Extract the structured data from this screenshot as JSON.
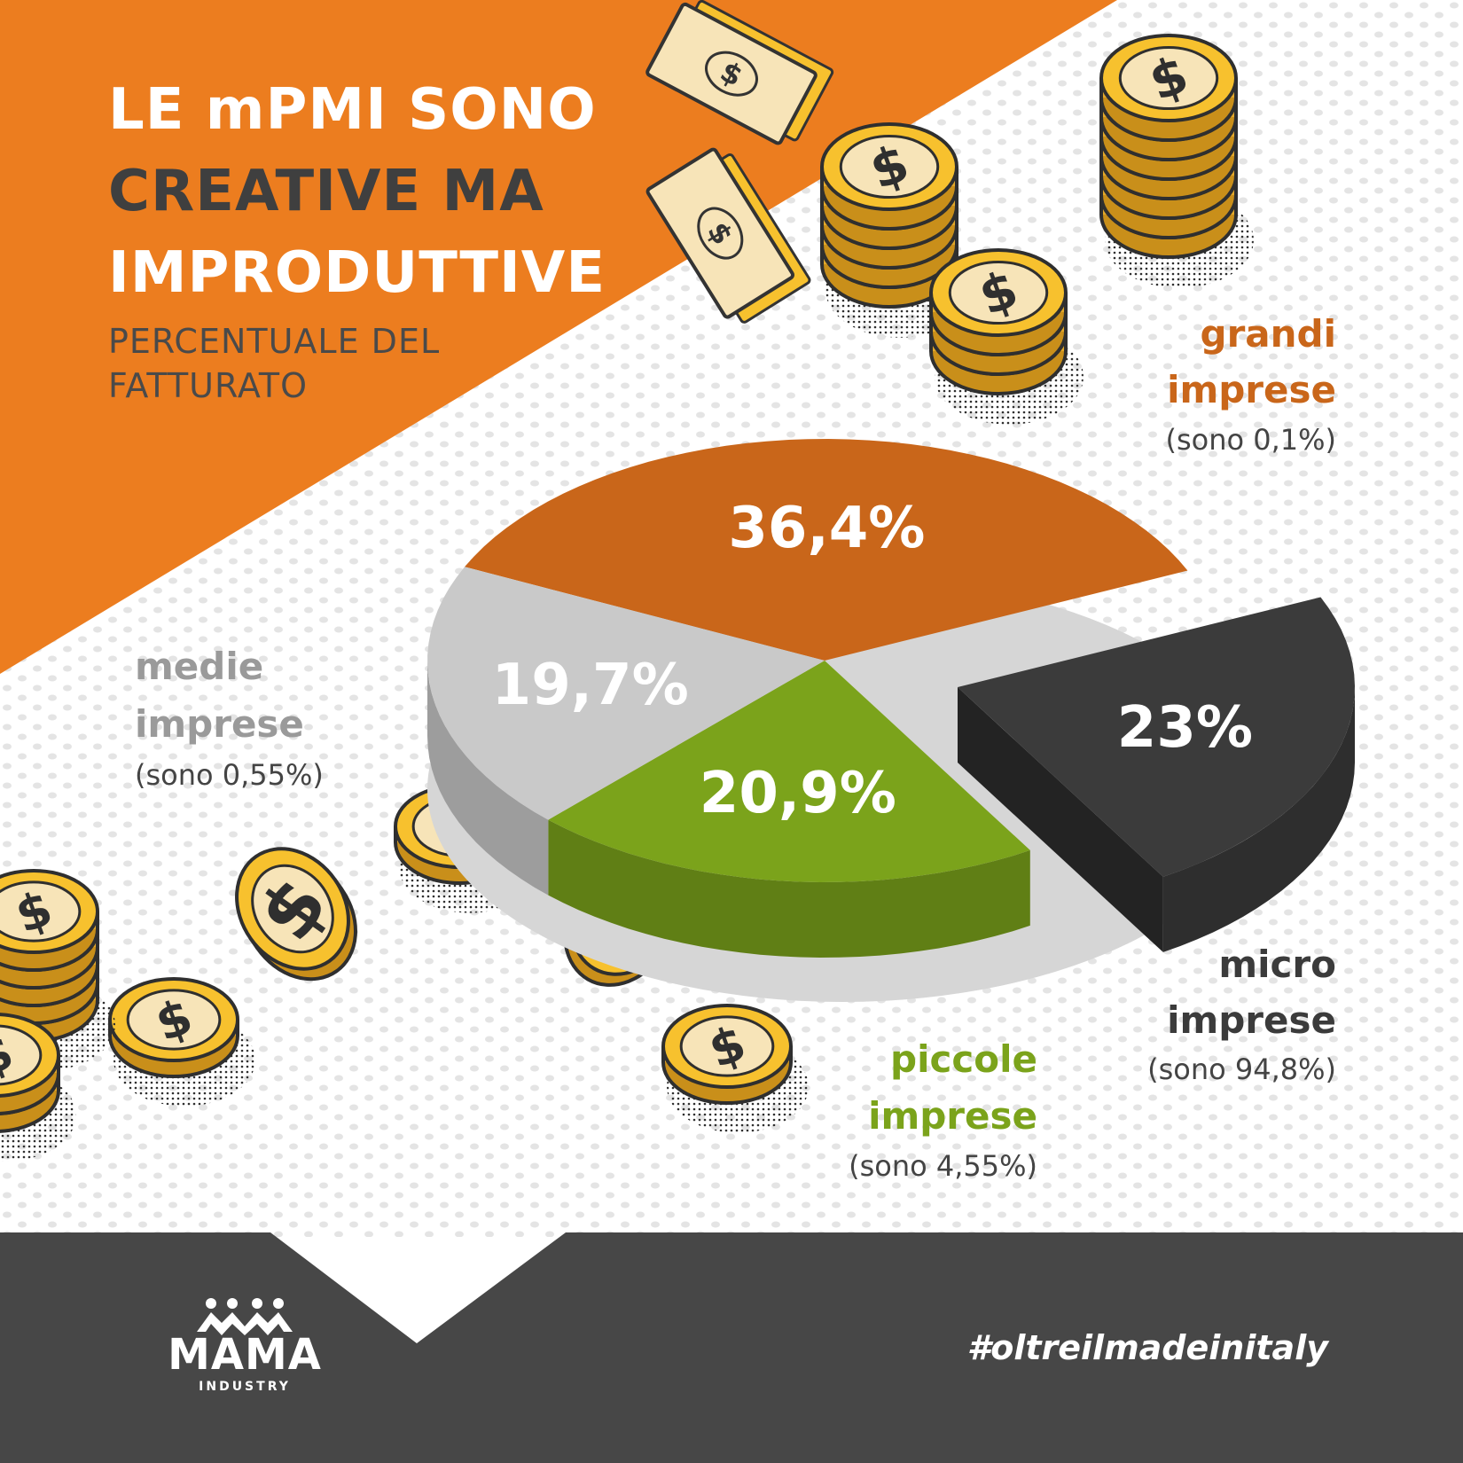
{
  "header": {
    "title_lines": [
      "LE mPMI SONO",
      "CREATIVE MA",
      "IMPRODUTTIVE"
    ],
    "subtitle_lines": [
      "PERCENTUALE DEL",
      "FATTURATO"
    ]
  },
  "colors": {
    "orange": "#ec7d1f",
    "dark_orange": "#c9661a",
    "gray": "#c9c9c9",
    "green": "#7ba31b",
    "dark": "#3b3b3b",
    "footer": "#474747",
    "coin": "#f7c12e"
  },
  "chart_data": {
    "type": "pie",
    "title": "LE mPMI SONO CREATIVE MA IMPRODUTTIVE",
    "subtitle": "PERCENTUALE DEL FATTURATO",
    "slices": [
      {
        "label_lines": [
          "grandi",
          "imprese"
        ],
        "share_note": "(sono 0,1%)",
        "value": 36.4,
        "value_label": "36,4%",
        "color": "#c9661a"
      },
      {
        "label_lines": [
          "micro",
          "imprese"
        ],
        "share_note": "(sono 94,8%)",
        "value": 23,
        "value_label": "23%",
        "color": "#3b3b3b",
        "exploded": true
      },
      {
        "label_lines": [
          "piccole",
          "imprese"
        ],
        "share_note": "(sono 4,55%)",
        "value": 20.9,
        "value_label": "20,9%",
        "color": "#7ba31b"
      },
      {
        "label_lines": [
          "medie",
          "imprese"
        ],
        "share_note": "(sono 0,55%)",
        "value": 19.7,
        "value_label": "19,7%",
        "color": "#c9c9c9"
      }
    ]
  },
  "footer": {
    "logo_word": "MAMA",
    "logo_sub": "INDUSTRY",
    "hashtag": "#oltreilmadeinitaly"
  }
}
